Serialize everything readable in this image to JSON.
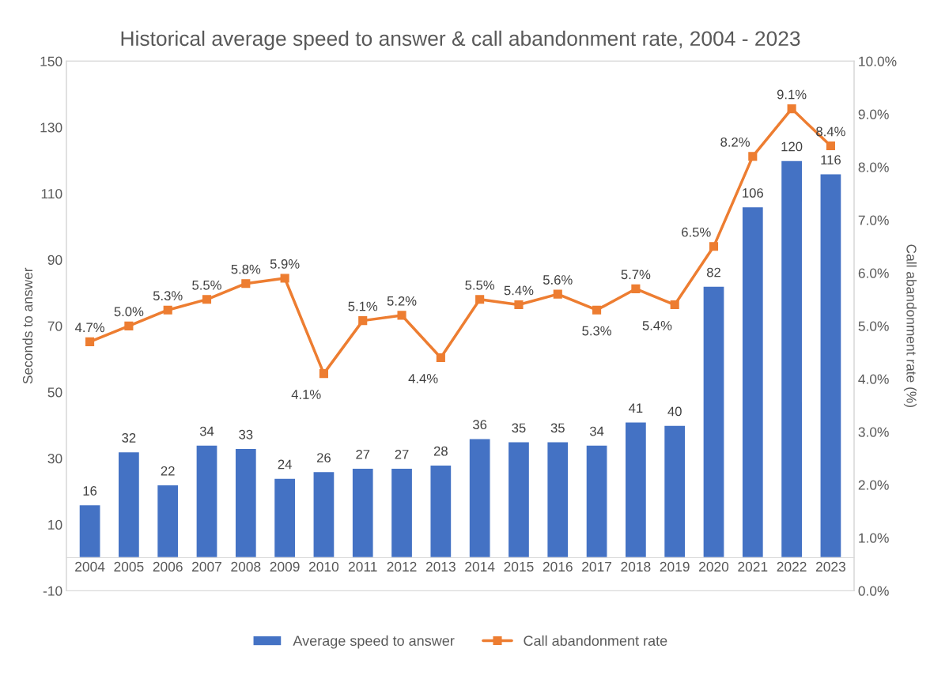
{
  "chart_data": {
    "type": "bar",
    "title": "Historical average speed to answer & call abandonment rate, 2004 - 2023",
    "ylabel": "Seconds to answer",
    "y2label": "Call abandonment rate (%)",
    "categories": [
      "2004",
      "2005",
      "2006",
      "2007",
      "2008",
      "2009",
      "2010",
      "2011",
      "2012",
      "2013",
      "2014",
      "2015",
      "2016",
      "2017",
      "2018",
      "2019",
      "2020",
      "2021",
      "2022",
      "2023"
    ],
    "series": [
      {
        "name": "Average speed to answer",
        "color": "#4472c4",
        "values": [
          16,
          32,
          22,
          34,
          33,
          24,
          26,
          27,
          27,
          28,
          36,
          35,
          35,
          34,
          41,
          40,
          82,
          106,
          120,
          116
        ],
        "value_labels": [
          "16",
          "32",
          "22",
          "34",
          "33",
          "24",
          "26",
          "27",
          "27",
          "28",
          "36",
          "35",
          "35",
          "34",
          "41",
          "40",
          "82",
          "106",
          "120",
          "116"
        ]
      },
      {
        "name": "Call abandonment rate",
        "type": "line",
        "axis": "y2",
        "color": "#ed7d31",
        "marker": "square",
        "values": [
          4.7,
          5.0,
          5.3,
          5.5,
          5.8,
          5.9,
          4.1,
          5.1,
          5.2,
          4.4,
          5.5,
          5.4,
          5.6,
          5.3,
          5.7,
          5.4,
          6.5,
          8.2,
          9.1,
          8.4
        ],
        "value_labels": [
          "4.7%",
          "5.0%",
          "5.3%",
          "5.5%",
          "5.8%",
          "5.9%",
          "4.1%",
          "5.1%",
          "5.2%",
          "4.4%",
          "5.5%",
          "5.4%",
          "5.6%",
          "5.3%",
          "5.7%",
          "5.4%",
          "6.5%",
          "8.2%",
          "9.1%",
          "8.4%"
        ]
      }
    ],
    "ylim": [
      -10,
      150
    ],
    "yticks": [
      -10,
      10,
      30,
      50,
      70,
      90,
      110,
      130,
      150
    ],
    "y2lim": [
      0,
      10
    ],
    "y2ticks": [
      {
        "value": 0,
        "label": "0.0%"
      },
      {
        "value": 1,
        "label": "1.0%"
      },
      {
        "value": 2,
        "label": "2.0%"
      },
      {
        "value": 3,
        "label": "3.0%"
      },
      {
        "value": 4,
        "label": "4.0%"
      },
      {
        "value": 5,
        "label": "5.0%"
      },
      {
        "value": 6,
        "label": "6.0%"
      },
      {
        "value": 7,
        "label": "7.0%"
      },
      {
        "value": 8,
        "label": "8.0%"
      },
      {
        "value": 9,
        "label": "9.0%"
      },
      {
        "value": 10,
        "label": "10.0%"
      }
    ],
    "legend": "bottom"
  }
}
